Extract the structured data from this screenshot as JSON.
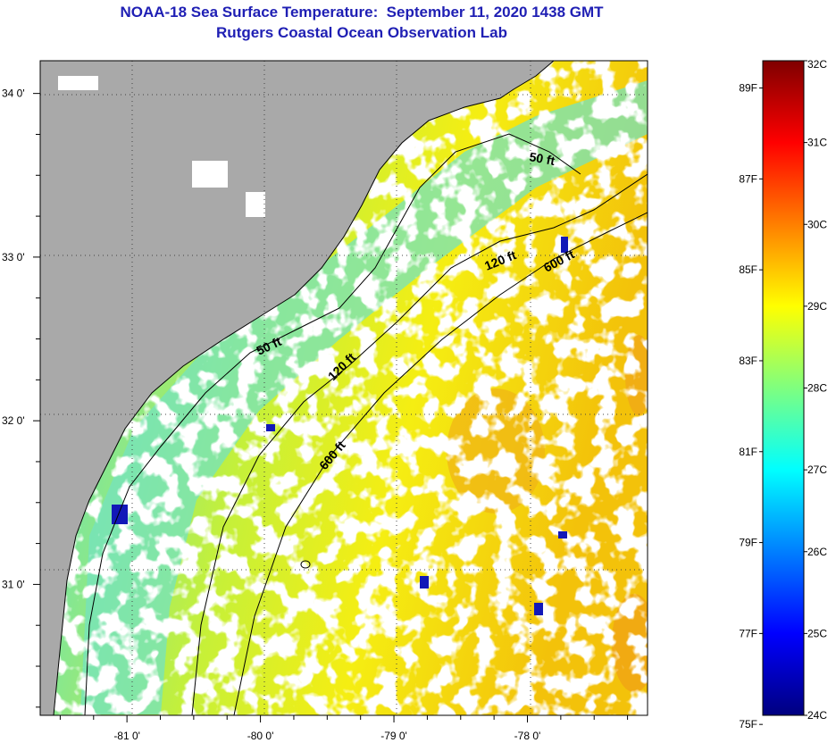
{
  "title": "NOAA-18 Sea Surface Temperature:  September 11, 2020 1438 GMT",
  "subtitle": "Rutgers Coastal Ocean Observation Lab",
  "map": {
    "lon_range": [
      -81.65,
      -77.1
    ],
    "lat_range": [
      30.2,
      34.2
    ],
    "lat_ticks": [
      {
        "value": 34,
        "label": "34 0'"
      },
      {
        "value": 33,
        "label": "33 0'"
      },
      {
        "value": 32,
        "label": "32 0'"
      },
      {
        "value": 31,
        "label": "31 0'"
      }
    ],
    "lon_ticks": [
      {
        "value": -81,
        "label": "-81 0'"
      },
      {
        "value": -80,
        "label": "-80 0'"
      },
      {
        "value": -79,
        "label": "-79 0'"
      },
      {
        "value": -78,
        "label": "-78 0'"
      }
    ],
    "gridlines": "dotted",
    "colors": {
      "land": "#a9a9a9",
      "cloud": "#ffffff",
      "isobath": "#000000"
    },
    "isobath_labels": [
      {
        "text": "50 ft"
      },
      {
        "text": "50 ft"
      },
      {
        "text": "120 ft"
      },
      {
        "text": "120 ft"
      },
      {
        "text": "600 ft"
      },
      {
        "text": "600 ft"
      }
    ]
  },
  "colorbar": {
    "min_c": 24,
    "max_c": 32,
    "celsius_labels": [
      {
        "value": 32,
        "label": "32C"
      },
      {
        "value": 31,
        "label": "31C"
      },
      {
        "value": 30,
        "label": "30C"
      },
      {
        "value": 29,
        "label": "29C"
      },
      {
        "value": 28,
        "label": "28C"
      },
      {
        "value": 27,
        "label": "27C"
      },
      {
        "value": 26,
        "label": "26C"
      },
      {
        "value": 25,
        "label": "25C"
      },
      {
        "value": 24,
        "label": "24C"
      }
    ],
    "fahrenheit_labels": [
      {
        "value": 89,
        "label": "89F"
      },
      {
        "value": 87,
        "label": "87F"
      },
      {
        "value": 85,
        "label": "85F"
      },
      {
        "value": 83,
        "label": "83F"
      },
      {
        "value": 81,
        "label": "81F"
      },
      {
        "value": 79,
        "label": "79F"
      },
      {
        "value": 77,
        "label": "77F"
      },
      {
        "value": 75,
        "label": "75F"
      }
    ],
    "colormap": [
      "#00007f",
      "#0000ff",
      "#007fff",
      "#00ffff",
      "#7fff7f",
      "#ffff00",
      "#ff7f00",
      "#ff0000",
      "#7f0000"
    ]
  }
}
